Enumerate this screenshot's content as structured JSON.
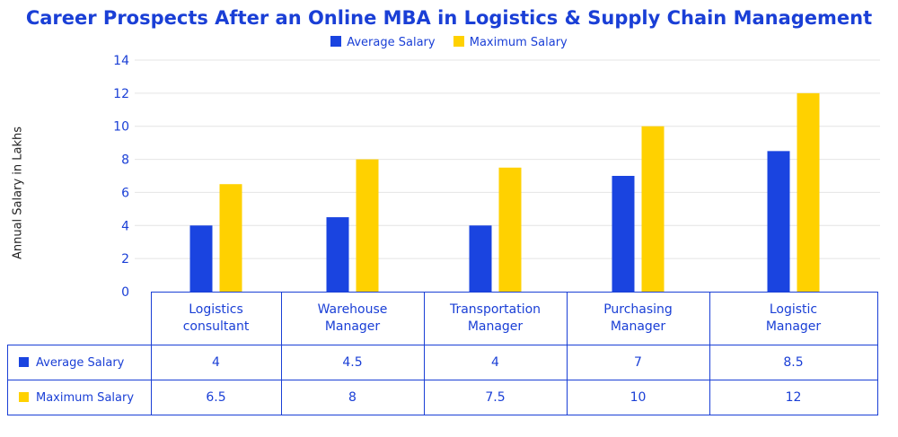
{
  "chart_data": {
    "type": "bar",
    "title": "Career Prospects After an Online MBA in Logistics & Supply Chain Management",
    "ylabel": "Annual Salary in Lakhs",
    "xlabel": "",
    "ylim": [
      0,
      14
    ],
    "yticks": [
      0,
      2,
      4,
      6,
      8,
      10,
      12,
      14
    ],
    "grid": true,
    "legend": "top-center",
    "categories": [
      [
        "Logistics",
        "consultant"
      ],
      [
        "Warehouse",
        "Manager"
      ],
      [
        "Transportation",
        "Manager"
      ],
      [
        "Purchasing",
        "Manager"
      ],
      [
        "Logistic",
        "Manager"
      ]
    ],
    "series": [
      {
        "name": "Average Salary",
        "color": "#1a44e0",
        "values": [
          4,
          4.5,
          4,
          7,
          8.5
        ],
        "labels": [
          "4",
          "4.5",
          "4",
          "7",
          "8.5"
        ]
      },
      {
        "name": "Maximum Salary",
        "color": "#ffd100",
        "values": [
          6.5,
          8,
          7.5,
          10,
          12
        ],
        "labels": [
          "6.5",
          "8",
          "7.5",
          "10",
          "12"
        ]
      }
    ]
  }
}
